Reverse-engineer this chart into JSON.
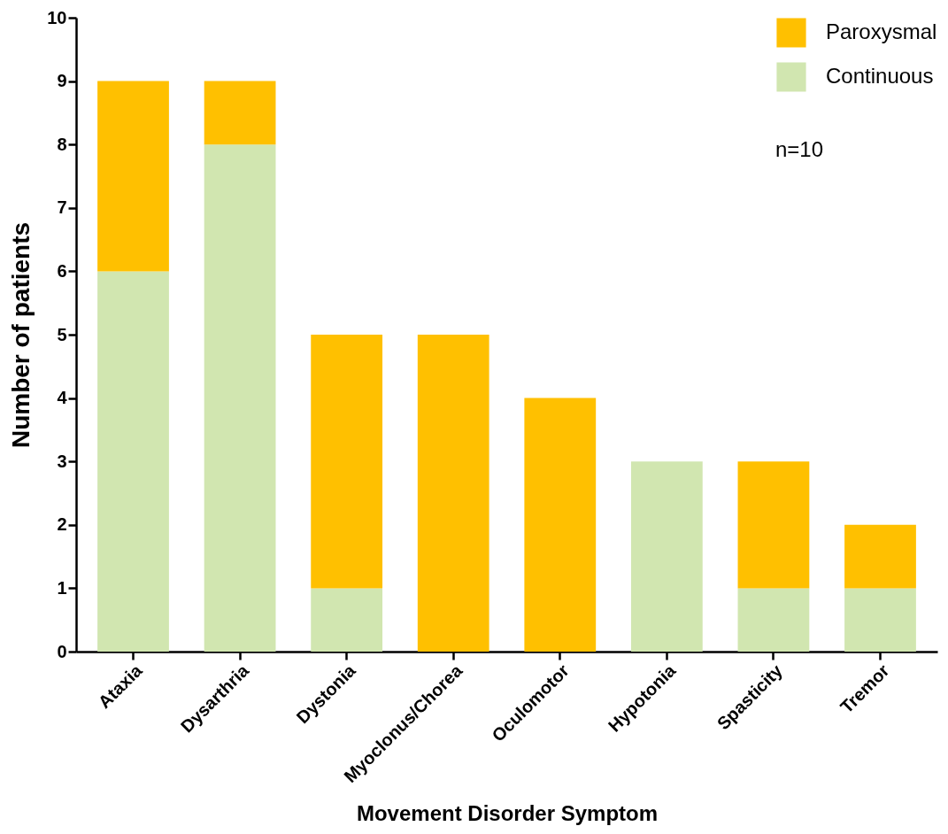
{
  "chart_data": {
    "type": "bar",
    "stacked": true,
    "xlabel": "Movement Disorder Symptom",
    "ylabel": "Number of patients",
    "categories": [
      "Ataxia",
      "Dysarthria",
      "Dystonia",
      "Myoclonus/Chorea",
      "Oculomotor",
      "Hypotonia",
      "Spasticity",
      "Tremor"
    ],
    "series": [
      {
        "name": "Continuous",
        "color": "#d1e6b0",
        "values": [
          6,
          8,
          1,
          0,
          0,
          3,
          1,
          1
        ]
      },
      {
        "name": "Paroxysmal",
        "color": "#ffc000",
        "values": [
          3,
          1,
          4,
          5,
          4,
          0,
          2,
          1
        ]
      }
    ],
    "ylim": [
      0,
      10
    ],
    "yticks": [
      0,
      1,
      2,
      3,
      4,
      5,
      6,
      7,
      8,
      9,
      10
    ],
    "grid": false,
    "legend": "top right",
    "annotations": [
      "n=10"
    ]
  }
}
